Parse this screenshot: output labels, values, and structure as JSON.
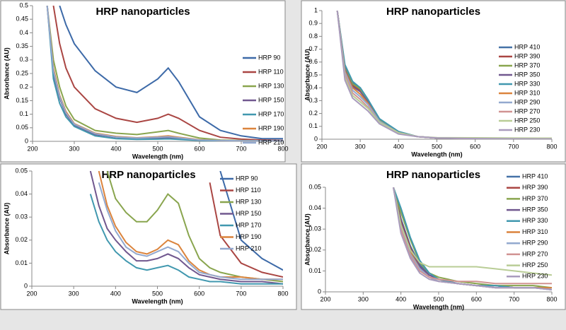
{
  "chart_data": [
    {
      "type": "line",
      "title": "HRP nanoparticles",
      "x_label": "Wavelength (nm)",
      "y_label": "Absorbance (AU)",
      "xlim": [
        200,
        800
      ],
      "xticks": [
        200,
        300,
        400,
        500,
        600,
        700,
        800
      ],
      "ylim": [
        0,
        0.5
      ],
      "yticks": [
        0,
        0.05,
        0.1,
        0.15,
        0.2,
        0.25,
        0.3,
        0.35,
        0.4,
        0.45,
        0.5
      ],
      "legend": "right",
      "x": [
        235,
        250,
        265,
        280,
        300,
        350,
        400,
        450,
        500,
        525,
        550,
        600,
        650,
        700,
        750,
        800
      ],
      "series": [
        {
          "name": "HRP 90",
          "color": "#3d6aa8",
          "values": [
            null,
            null,
            0.5,
            0.43,
            0.36,
            0.26,
            0.2,
            0.18,
            0.23,
            0.27,
            0.22,
            0.09,
            0.04,
            0.02,
            0.01,
            0.01
          ]
        },
        {
          "name": "HRP 110",
          "color": "#aa4643",
          "values": [
            null,
            0.5,
            0.36,
            0.27,
            0.2,
            0.12,
            0.085,
            0.07,
            0.085,
            0.1,
            0.085,
            0.04,
            0.015,
            0.008,
            0.005,
            0.003
          ]
        },
        {
          "name": "HRP 130",
          "color": "#89a54e",
          "values": [
            0.5,
            0.3,
            0.2,
            0.13,
            0.08,
            0.04,
            0.03,
            0.025,
            0.035,
            0.04,
            0.03,
            0.012,
            0.005,
            0.003,
            0.002,
            0.001
          ]
        },
        {
          "name": "HRP 150",
          "color": "#71588f",
          "values": [
            0.5,
            0.25,
            0.16,
            0.1,
            0.06,
            0.025,
            0.015,
            0.01,
            0.012,
            0.014,
            0.01,
            0.004,
            0.002,
            0.001,
            0.001,
            0.001
          ]
        },
        {
          "name": "HRP 170",
          "color": "#4198af",
          "values": [
            0.5,
            0.23,
            0.14,
            0.09,
            0.055,
            0.02,
            0.01,
            0.007,
            0.008,
            0.009,
            0.007,
            0.003,
            0.001,
            0.001,
            0.001,
            0
          ]
        },
        {
          "name": "HRP 190",
          "color": "#db843d",
          "values": [
            0.5,
            0.27,
            0.17,
            0.11,
            0.065,
            0.03,
            0.018,
            0.013,
            0.017,
            0.02,
            0.015,
            0.006,
            0.003,
            0.002,
            0.001,
            0.001
          ]
        },
        {
          "name": "HRP 210",
          "color": "#93a9cf",
          "values": [
            0.5,
            0.26,
            0.165,
            0.105,
            0.063,
            0.028,
            0.016,
            0.012,
            0.015,
            0.017,
            0.013,
            0.005,
            0.003,
            0.002,
            0.002,
            0.002
          ]
        }
      ]
    },
    {
      "type": "line",
      "title": "HRP nanoparticles",
      "x_label": "Wavelength (nm)",
      "y_label": "Absorbance (AU)",
      "xlim": [
        200,
        800
      ],
      "xticks": [
        200,
        300,
        400,
        500,
        600,
        700,
        800
      ],
      "ylim": [
        0,
        1
      ],
      "yticks": [
        0,
        0.1,
        0.2,
        0.3,
        0.4,
        0.5,
        0.6,
        0.7,
        0.8,
        0.9,
        1
      ],
      "legend": "right",
      "x": [
        240,
        260,
        280,
        300,
        320,
        350,
        400,
        450,
        500,
        600,
        700,
        800
      ],
      "series": [
        {
          "name": "HRP 410",
          "color": "#4572a7",
          "values": [
            1,
            0.56,
            0.44,
            0.4,
            0.31,
            0.15,
            0.05,
            0.02,
            0.01,
            0.005,
            0.003,
            0.002
          ]
        },
        {
          "name": "HRP 390",
          "color": "#aa4643",
          "values": [
            1,
            0.55,
            0.42,
            0.38,
            0.3,
            0.15,
            0.05,
            0.02,
            0.01,
            0.005,
            0.003,
            0.002
          ]
        },
        {
          "name": "HRP 370",
          "color": "#89a54e",
          "values": [
            1,
            0.55,
            0.43,
            0.39,
            0.3,
            0.15,
            0.05,
            0.02,
            0.01,
            0.006,
            0.004,
            0.003
          ]
        },
        {
          "name": "HRP 350",
          "color": "#71588f",
          "values": [
            1,
            0.54,
            0.41,
            0.37,
            0.29,
            0.14,
            0.05,
            0.02,
            0.01,
            0.005,
            0.003,
            0.002
          ]
        },
        {
          "name": "HRP 330",
          "color": "#4198af",
          "values": [
            1,
            0.58,
            0.45,
            0.4,
            0.31,
            0.16,
            0.06,
            0.02,
            0.01,
            0.005,
            0.003,
            0.002
          ]
        },
        {
          "name": "HRP 310",
          "color": "#db843d",
          "values": [
            1,
            0.53,
            0.4,
            0.35,
            0.28,
            0.14,
            0.05,
            0.02,
            0.01,
            0.005,
            0.003,
            0.002
          ]
        },
        {
          "name": "HRP 290",
          "color": "#93a9cf",
          "values": [
            1,
            0.52,
            0.38,
            0.33,
            0.27,
            0.14,
            0.05,
            0.02,
            0.01,
            0.005,
            0.003,
            0.002
          ]
        },
        {
          "name": "HRP 270",
          "color": "#d19392",
          "values": [
            1,
            0.5,
            0.36,
            0.31,
            0.25,
            0.13,
            0.05,
            0.02,
            0.01,
            0.005,
            0.004,
            0.004
          ]
        },
        {
          "name": "HRP 250",
          "color": "#b9cd96",
          "values": [
            1,
            0.48,
            0.34,
            0.29,
            0.24,
            0.13,
            0.05,
            0.02,
            0.012,
            0.011,
            0.009,
            0.008
          ]
        },
        {
          "name": "HRP 230",
          "color": "#a99bbd",
          "values": [
            1,
            0.46,
            0.32,
            0.27,
            0.22,
            0.12,
            0.04,
            0.02,
            0.01,
            0.005,
            0.003,
            0.002
          ]
        }
      ]
    },
    {
      "type": "line",
      "title": "HRP nanoparticles",
      "x_label": "Wavelength (nm)",
      "y_label": "Absorbance (AU)",
      "xlim": [
        200,
        800
      ],
      "xticks": [
        200,
        300,
        400,
        500,
        600,
        700,
        800
      ],
      "ylim": [
        0,
        0.05
      ],
      "yticks": [
        0,
        0.01,
        0.02,
        0.03,
        0.04,
        0.05
      ],
      "legend": "right",
      "x": [
        340,
        360,
        380,
        400,
        425,
        450,
        475,
        500,
        525,
        550,
        575,
        600,
        625,
        650,
        700,
        750,
        800
      ],
      "series": [
        {
          "name": "HRP 90",
          "color": "#3d6aa8",
          "values": [
            null,
            null,
            null,
            null,
            null,
            null,
            null,
            null,
            null,
            null,
            null,
            null,
            null,
            0.05,
            0.02,
            0.012,
            0.007
          ]
        },
        {
          "name": "HRP 110",
          "color": "#aa4643",
          "values": [
            null,
            null,
            null,
            null,
            null,
            null,
            null,
            null,
            null,
            null,
            null,
            null,
            0.045,
            0.022,
            0.01,
            0.006,
            0.004
          ]
        },
        {
          "name": "HRP 130",
          "color": "#89a54e",
          "values": [
            null,
            null,
            0.05,
            0.038,
            0.032,
            0.028,
            0.028,
            0.033,
            0.04,
            0.036,
            0.022,
            0.012,
            0.008,
            0.006,
            0.004,
            0.003,
            0.002
          ]
        },
        {
          "name": "HRP 150",
          "color": "#71588f",
          "values": [
            0.05,
            0.035,
            0.025,
            0.02,
            0.015,
            0.011,
            0.011,
            0.012,
            0.014,
            0.012,
            0.008,
            0.005,
            0.004,
            0.003,
            0.002,
            0.002,
            0.001
          ]
        },
        {
          "name": "HRP 170",
          "color": "#4198af",
          "values": [
            0.04,
            0.028,
            0.02,
            0.015,
            0.011,
            0.008,
            0.007,
            0.008,
            0.009,
            0.007,
            0.004,
            0.003,
            0.002,
            0.002,
            0.001,
            0.001,
            0.001
          ]
        },
        {
          "name": "HRP 190",
          "color": "#db843d",
          "values": [
            null,
            0.05,
            0.035,
            0.026,
            0.019,
            0.015,
            0.014,
            0.016,
            0.02,
            0.018,
            0.011,
            0.007,
            0.005,
            0.004,
            0.004,
            0.003,
            0.003
          ]
        },
        {
          "name": "HRP 210",
          "color": "#93a9cf",
          "values": [
            null,
            0.045,
            0.033,
            0.024,
            0.017,
            0.014,
            0.013,
            0.015,
            0.017,
            0.015,
            0.01,
            0.006,
            0.005,
            0.004,
            0.003,
            0.003,
            0.003
          ]
        }
      ]
    },
    {
      "type": "line",
      "title": "HRP nanoparticles",
      "x_label": "Wavelength (nm)",
      "y_label": "Absorbance (AU)",
      "xlim": [
        200,
        800
      ],
      "xticks": [
        200,
        300,
        400,
        500,
        600,
        700,
        800
      ],
      "ylim": [
        0,
        0.05
      ],
      "yticks": [
        0,
        0.01,
        0.02,
        0.03,
        0.04,
        0.05
      ],
      "legend": "right",
      "x": [
        380,
        400,
        425,
        450,
        475,
        500,
        550,
        600,
        650,
        700,
        750,
        800
      ],
      "series": [
        {
          "name": "HRP 410",
          "color": "#4572a7",
          "values": [
            0.05,
            0.035,
            0.022,
            0.013,
            0.008,
            0.006,
            0.004,
            0.003,
            0.003,
            0.002,
            0.002,
            0.002
          ]
        },
        {
          "name": "HRP 390",
          "color": "#aa4643",
          "values": [
            0.05,
            0.034,
            0.021,
            0.012,
            0.008,
            0.006,
            0.004,
            0.003,
            0.003,
            0.002,
            0.002,
            0.002
          ]
        },
        {
          "name": "HRP 370",
          "color": "#89a54e",
          "values": [
            0.05,
            0.038,
            0.025,
            0.014,
            0.009,
            0.007,
            0.005,
            0.004,
            0.003,
            0.003,
            0.003,
            0.002
          ]
        },
        {
          "name": "HRP 350",
          "color": "#71588f",
          "values": [
            0.05,
            0.033,
            0.02,
            0.012,
            0.008,
            0.006,
            0.004,
            0.003,
            0.002,
            0.002,
            0.002,
            0.001
          ]
        },
        {
          "name": "HRP 330",
          "color": "#4198af",
          "values": [
            0.05,
            0.04,
            0.026,
            0.015,
            0.009,
            0.006,
            0.004,
            0.003,
            0.003,
            0.002,
            0.002,
            0.002
          ]
        },
        {
          "name": "HRP 310",
          "color": "#db843d",
          "values": [
            0.05,
            0.032,
            0.019,
            0.011,
            0.007,
            0.005,
            0.004,
            0.003,
            0.002,
            0.002,
            0.002,
            0.002
          ]
        },
        {
          "name": "HRP 290",
          "color": "#93a9cf",
          "values": [
            0.05,
            0.031,
            0.018,
            0.011,
            0.007,
            0.005,
            0.004,
            0.003,
            0.002,
            0.002,
            0.002,
            0.001
          ]
        },
        {
          "name": "HRP 270",
          "color": "#d19392",
          "values": [
            0.05,
            0.03,
            0.017,
            0.01,
            0.007,
            0.006,
            0.005,
            0.005,
            0.004,
            0.004,
            0.004,
            0.004
          ]
        },
        {
          "name": "HRP 250",
          "color": "#b9cd96",
          "values": [
            0.05,
            0.032,
            0.02,
            0.014,
            0.012,
            0.012,
            0.012,
            0.012,
            0.011,
            0.01,
            0.009,
            0.008
          ]
        },
        {
          "name": "HRP 230",
          "color": "#a99bbd",
          "values": [
            0.05,
            0.028,
            0.016,
            0.009,
            0.006,
            0.005,
            0.004,
            0.003,
            0.002,
            0.002,
            0.002,
            0.001
          ]
        }
      ]
    }
  ]
}
